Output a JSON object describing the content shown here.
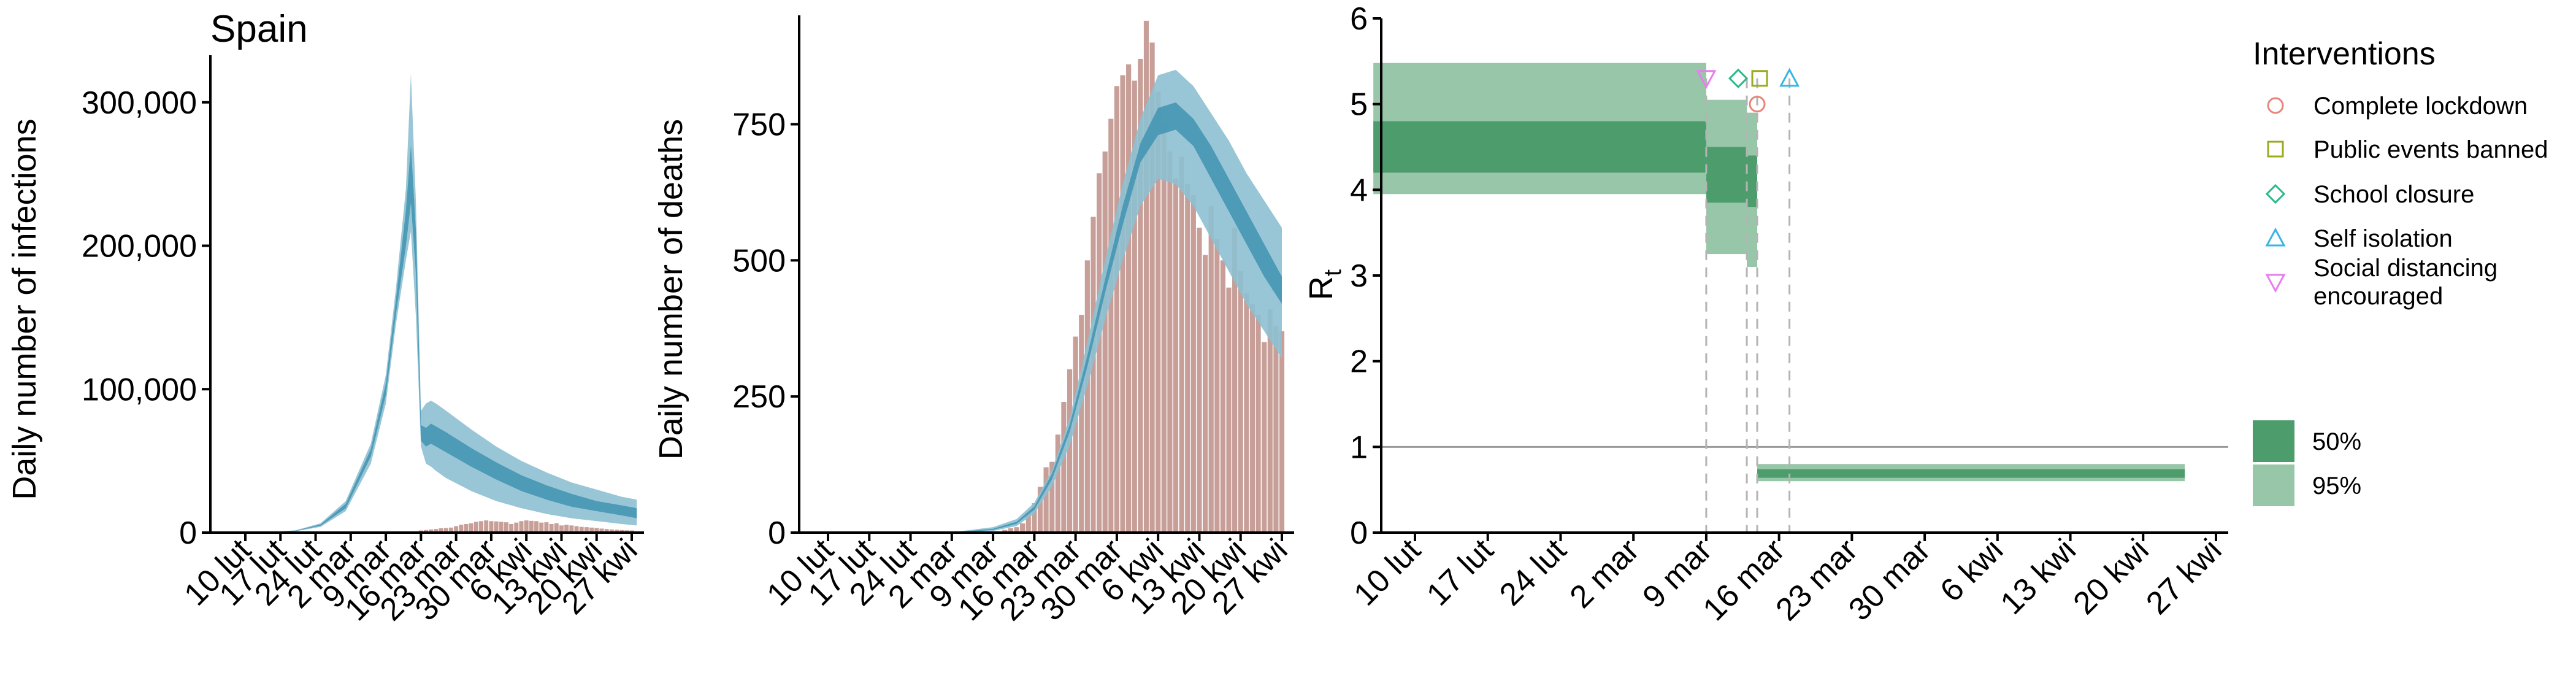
{
  "chart_data": [
    {
      "type": "bar",
      "title": "Spain",
      "ylabel": "Daily number of infections",
      "xlabel": "",
      "x_tick_labels": [
        "10 lut",
        "17 lut",
        "24 lut",
        "2 mar",
        "9 mar",
        "16 mar",
        "23 mar",
        "30 mar",
        "6 kwi",
        "13 kwi",
        "20 kwi",
        "27 kwi"
      ],
      "x_tick_day": [
        0,
        7,
        14,
        21,
        28,
        35,
        42,
        49,
        56,
        63,
        70,
        77
      ],
      "ylim": [
        0,
        320000
      ],
      "y_ticks": [
        0,
        100000,
        200000,
        300000
      ],
      "y_tick_labels": [
        "0",
        "100,000",
        "200,000",
        "300,000"
      ],
      "colors": {
        "band95": "#8ec0d2",
        "band50": "#4596b4",
        "bars": "#c79f98"
      },
      "series": [
        {
          "kind": "band95",
          "x": [
            -7,
            5,
            10,
            15,
            20,
            25,
            28,
            30,
            32,
            33,
            34,
            35,
            36,
            37,
            38,
            40,
            45,
            50,
            55,
            60,
            65,
            70,
            75,
            78
          ],
          "lower": [
            0,
            200,
            900,
            4000,
            15000,
            48000,
            90000,
            145000,
            190000,
            210000,
            150000,
            60000,
            48000,
            46000,
            43000,
            38000,
            29000,
            22000,
            17000,
            13000,
            10000,
            8000,
            6000,
            5000
          ],
          "upper": [
            0,
            400,
            1600,
            6500,
            22000,
            62000,
            110000,
            170000,
            240000,
            320000,
            230000,
            85000,
            90000,
            92000,
            90000,
            85000,
            72000,
            60000,
            50000,
            42000,
            35000,
            30000,
            25000,
            23000
          ]
        },
        {
          "kind": "band50",
          "x": [
            -7,
            5,
            10,
            15,
            20,
            25,
            28,
            30,
            32,
            33,
            34,
            35,
            36,
            37,
            38,
            40,
            45,
            50,
            55,
            60,
            65,
            70,
            75,
            78
          ],
          "lower": [
            0,
            260,
            1100,
            4800,
            17000,
            53000,
            96000,
            152000,
            200000,
            230000,
            180000,
            64000,
            60000,
            62000,
            60000,
            56000,
            46000,
            37000,
            29000,
            23000,
            18000,
            15000,
            12000,
            10000
          ],
          "upper": [
            0,
            330,
            1350,
            5700,
            20000,
            58000,
            104000,
            162000,
            225000,
            270000,
            210000,
            75000,
            73000,
            76000,
            74000,
            70000,
            59000,
            49000,
            40000,
            33000,
            27000,
            22000,
            19000,
            17000
          ]
        },
        {
          "kind": "bars",
          "x": [
            34,
            35,
            36,
            37,
            38,
            39,
            40,
            41,
            42,
            43,
            44,
            45,
            46,
            47,
            48,
            49,
            50,
            51,
            52,
            53,
            54,
            55,
            56,
            57,
            58,
            59,
            60,
            61,
            62,
            63,
            64,
            65,
            66,
            67,
            68,
            69,
            70,
            71,
            72,
            73,
            74,
            75,
            76,
            77
          ],
          "values": [
            800,
            1500,
            1800,
            2200,
            2500,
            3000,
            3200,
            3500,
            4500,
            5500,
            6000,
            6500,
            7500,
            8000,
            8500,
            8000,
            7800,
            7500,
            7200,
            6000,
            7000,
            8000,
            8500,
            8200,
            8000,
            7000,
            7200,
            6000,
            6500,
            5000,
            5500,
            5000,
            4500,
            4000,
            3800,
            3500,
            3200,
            2800,
            2500,
            2200,
            2000,
            1800,
            1600,
            1500
          ]
        }
      ]
    },
    {
      "type": "bar",
      "title": "",
      "ylabel": "Daily number of deaths",
      "xlabel": "",
      "x_tick_labels": [
        "10 lut",
        "17 lut",
        "24 lut",
        "2 mar",
        "9 mar",
        "16 mar",
        "23 mar",
        "30 mar",
        "6 kwi",
        "13 kwi",
        "20 kwi",
        "27 kwi"
      ],
      "x_tick_day": [
        0,
        7,
        14,
        21,
        28,
        35,
        42,
        49,
        56,
        63,
        70,
        77
      ],
      "ylim": [
        0,
        950
      ],
      "y_ticks": [
        0,
        250,
        500,
        750
      ],
      "y_tick_labels": [
        "0",
        "250",
        "500",
        "750"
      ],
      "colors": {
        "band95": "#8ec0d2",
        "band50": "#4596b4",
        "bars": "#c79f98"
      },
      "series": [
        {
          "kind": "band95",
          "x": [
            -7,
            22,
            28,
            32,
            35,
            38,
            41,
            44,
            47,
            50,
            53,
            56,
            59,
            62,
            65,
            68,
            71,
            74,
            77
          ],
          "lower": [
            0,
            0,
            3,
            12,
            35,
            85,
            160,
            270,
            390,
            500,
            600,
            650,
            640,
            600,
            540,
            480,
            420,
            370,
            320
          ],
          "upper": [
            0,
            2,
            10,
            25,
            55,
            115,
            210,
            350,
            500,
            640,
            760,
            840,
            850,
            820,
            770,
            720,
            660,
            610,
            560
          ]
        },
        {
          "kind": "band50",
          "x": [
            -7,
            22,
            28,
            32,
            35,
            38,
            41,
            44,
            47,
            50,
            53,
            56,
            59,
            62,
            65,
            68,
            71,
            74,
            77
          ],
          "lower": [
            0,
            0,
            5,
            16,
            42,
            98,
            185,
            305,
            440,
            565,
            680,
            730,
            740,
            710,
            650,
            590,
            530,
            470,
            420
          ],
          "upper": [
            0,
            1,
            7,
            20,
            48,
            108,
            198,
            325,
            465,
            600,
            715,
            780,
            790,
            760,
            710,
            650,
            590,
            530,
            470
          ]
        },
        {
          "kind": "bars",
          "x": [
            29,
            30,
            31,
            32,
            33,
            34,
            35,
            36,
            37,
            38,
            39,
            40,
            41,
            42,
            43,
            44,
            45,
            46,
            47,
            48,
            49,
            50,
            51,
            52,
            53,
            54,
            55,
            56,
            57,
            58,
            59,
            60,
            61,
            62,
            63,
            64,
            65,
            66,
            67,
            68,
            69,
            70,
            71,
            72,
            73,
            74,
            75,
            76,
            77
          ],
          "values": [
            2,
            5,
            8,
            10,
            17,
            36,
            54,
            84,
            120,
            130,
            180,
            240,
            300,
            360,
            400,
            500,
            580,
            660,
            700,
            760,
            820,
            840,
            860,
            830,
            870,
            940,
            900,
            810,
            750,
            700,
            650,
            690,
            640,
            620,
            560,
            510,
            600,
            540,
            500,
            450,
            560,
            480,
            440,
            420,
            400,
            350,
            410,
            380,
            370
          ]
        }
      ]
    },
    {
      "type": "line",
      "title": "",
      "ylabel": "R",
      "ylabel_sub": "t",
      "xlabel": "",
      "x_tick_labels": [
        "10 lut",
        "17 lut",
        "24 lut",
        "2 mar",
        "9 mar",
        "16 mar",
        "23 mar",
        "30 mar",
        "6 kwi",
        "13 kwi",
        "20 kwi",
        "27 kwi"
      ],
      "x_tick_day": [
        0,
        7,
        14,
        21,
        28,
        35,
        42,
        49,
        56,
        63,
        70,
        77
      ],
      "ylim": [
        0,
        6
      ],
      "y_ticks": [
        0,
        1,
        2,
        3,
        4,
        5,
        6
      ],
      "y_tick_labels": [
        "0",
        "1",
        "2",
        "3",
        "4",
        "5",
        "6"
      ],
      "reference_line": 1,
      "colors": {
        "band95": "#98c6a8",
        "band50": "#4c9c6c",
        "ref": "#9a9a9a"
      },
      "segments": [
        {
          "x": [
            -4,
            28
          ],
          "lower95": [
            3.95,
            3.95
          ],
          "upper95": [
            5.48,
            5.45
          ],
          "lower50": [
            4.2,
            4.2
          ],
          "upper50": [
            4.8,
            4.78
          ]
        },
        {
          "x": [
            28,
            31.9
          ],
          "lower95": [
            3.3,
            3.25
          ],
          "upper95": [
            5.05,
            5.0
          ],
          "lower50": [
            3.9,
            3.85
          ],
          "upper50": [
            4.5,
            4.45
          ]
        },
        {
          "x": [
            31.9,
            32.9
          ],
          "lower95": [
            3.1,
            3.1
          ],
          "upper95": [
            4.9,
            4.9
          ],
          "lower50": [
            3.8,
            3.8
          ],
          "upper50": [
            4.4,
            4.4
          ]
        },
        {
          "x": [
            32.9,
            74
          ],
          "lower95": [
            0.6,
            0.6
          ],
          "upper95": [
            0.8,
            0.75
          ],
          "lower50": [
            0.66,
            0.64
          ],
          "upper50": [
            0.74,
            0.72
          ]
        }
      ],
      "interventions": [
        {
          "name": "Social distancing encouraged",
          "day": 28,
          "marker_y": 5.3,
          "marker": "triangle-down",
          "color": "#e87df0"
        },
        {
          "name": "School closure",
          "day": 31.9,
          "marker_y": 5.3,
          "marker": "diamond",
          "color": "#27b989"
        },
        {
          "name": "Public events banned",
          "day": 32.9,
          "marker_y": 5.3,
          "marker": "square",
          "color": "#9aaa1f"
        },
        {
          "name": "Complete lockdown",
          "day": 32.9,
          "marker_y": 5.0,
          "marker": "circle",
          "color": "#e8857a"
        },
        {
          "name": "Self isolation",
          "day": 36,
          "marker_y": 5.3,
          "marker": "triangle-up",
          "color": "#35b5e8"
        }
      ],
      "legend": {
        "title": "Interventions",
        "items": [
          {
            "label": "Complete lockdown",
            "marker": "circle",
            "color": "#e8857a"
          },
          {
            "label": "Public events banned",
            "marker": "square",
            "color": "#9aaa1f"
          },
          {
            "label": "School closure",
            "marker": "diamond",
            "color": "#27b989"
          },
          {
            "label": "Self isolation",
            "marker": "triangle-up",
            "color": "#35b5e8"
          },
          {
            "label": "Social distancing",
            "label2": " encouraged",
            "marker": "triangle-down",
            "color": "#e87df0"
          }
        ],
        "bands": [
          {
            "label": "50%",
            "color": "#4c9c6c"
          },
          {
            "label": "95%",
            "color": "#98c6a8"
          }
        ]
      }
    }
  ]
}
